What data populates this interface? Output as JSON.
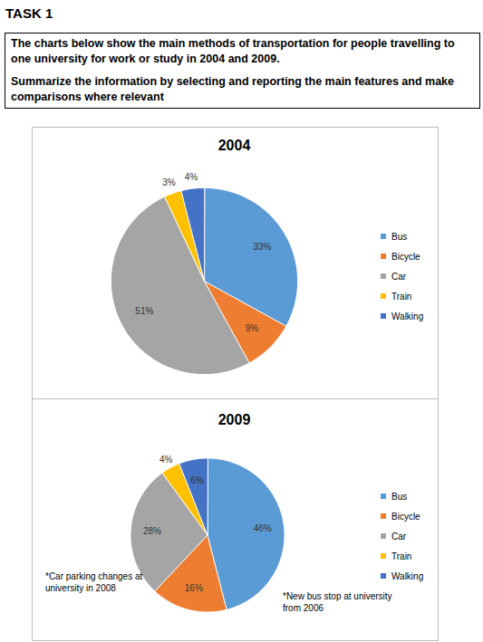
{
  "task": {
    "heading": "TASK 1",
    "prompt": [
      "The charts below show the main methods of transportation for people travelling to one university for work or study in 2004 and 2009.",
      "Summarize the information by selecting and reporting the main features and make comparisons where relevant"
    ]
  },
  "chart_data": [
    {
      "type": "pie",
      "title": "2004",
      "categories": [
        "Bus",
        "Bicycle",
        "Car",
        "Train",
        "Walking"
      ],
      "values": [
        33,
        9,
        51,
        3,
        4
      ],
      "value_labels": [
        "33%",
        "9%",
        "51%",
        "3%",
        "4%"
      ],
      "colors": [
        "#5b9bd5",
        "#ed7d31",
        "#a5a5a5",
        "#ffc000",
        "#4472c4"
      ],
      "data_labels": true,
      "legend": "right"
    },
    {
      "type": "pie",
      "title": "2009",
      "categories": [
        "Bus",
        "Bicycle",
        "Car",
        "Train",
        "Walking"
      ],
      "values": [
        46,
        16,
        28,
        4,
        6
      ],
      "value_labels": [
        "46%",
        "16%",
        "28%",
        "4%",
        "6%"
      ],
      "colors": [
        "#5b9bd5",
        "#ed7d31",
        "#a5a5a5",
        "#ffc000",
        "#4472c4"
      ],
      "data_labels": true,
      "legend": "right",
      "annotations": [
        "*Car parking changes at university in 2008",
        "*New bus stop at university from 2006"
      ]
    }
  ]
}
